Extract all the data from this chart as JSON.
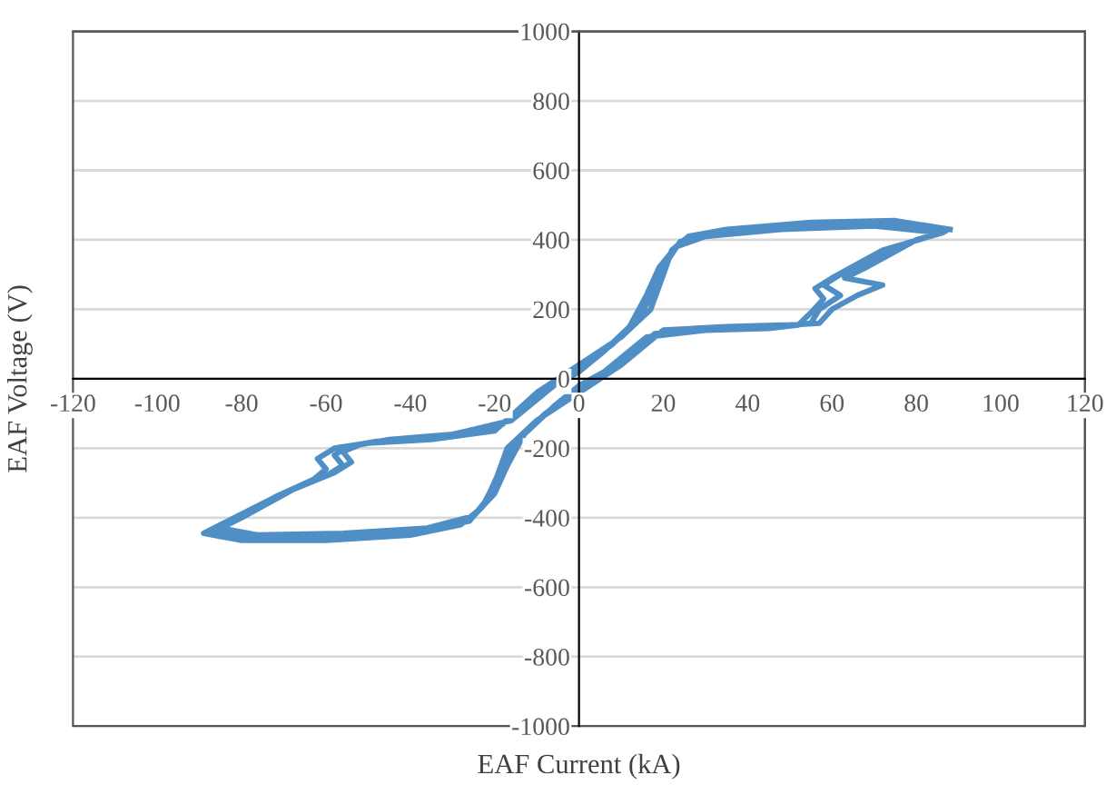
{
  "chart_data": {
    "type": "line",
    "xlabel": "EAF Current (kA)",
    "ylabel": "EAF Voltage (V)",
    "xlim": [
      -120,
      120
    ],
    "xticks": [
      -120,
      -100,
      -80,
      -60,
      -40,
      -20,
      0,
      20,
      40,
      60,
      80,
      100,
      120
    ],
    "ylim": [
      -1000,
      1000
    ],
    "yticks": [
      -1000,
      -800,
      -600,
      -400,
      -200,
      0,
      200,
      400,
      600,
      800,
      1000
    ],
    "grid": "y",
    "legend": false,
    "marker": "none",
    "line_style": "solid",
    "series": [
      {
        "color": "#4f8fc5",
        "x": [
          88,
          75,
          55,
          35,
          26,
          22,
          20,
          17,
          10,
          0,
          -10,
          -20,
          -35,
          -50,
          -58,
          -62,
          -60,
          -63,
          -72,
          -85,
          -89,
          -80,
          -60,
          -40,
          -28,
          -23,
          -20,
          -17,
          -10,
          0,
          10,
          20,
          35,
          50,
          57,
          60,
          66,
          72,
          63,
          68,
          80,
          87,
          72,
          50,
          32,
          24,
          21,
          18,
          14,
          8,
          0,
          -8,
          -18,
          -32,
          -48,
          -55,
          -58,
          -56,
          -60,
          -70,
          -83,
          -87,
          -78,
          -58,
          -38,
          -26,
          -22,
          -19,
          -15,
          -8,
          0,
          8,
          18,
          32,
          48,
          55,
          57,
          62,
          58,
          62,
          75,
          86,
          70,
          48,
          30,
          23,
          19,
          16,
          12,
          6,
          0,
          -6,
          -16,
          -30,
          -45,
          -52,
          -56,
          -54,
          -58,
          -68,
          -80,
          -85,
          -76,
          -56,
          -36,
          -25,
          -20,
          -17,
          -13,
          -6,
          0,
          6,
          16,
          30,
          45,
          52,
          55,
          58,
          56,
          60,
          72,
          86
        ],
        "values": [
          430,
          455,
          450,
          430,
          410,
          370,
          300,
          200,
          120,
          40,
          -40,
          -150,
          -175,
          -185,
          -200,
          -230,
          -260,
          -290,
          -340,
          -420,
          -445,
          -465,
          -465,
          -450,
          -420,
          -370,
          -300,
          -200,
          -120,
          -40,
          40,
          140,
          150,
          155,
          160,
          200,
          240,
          270,
          290,
          320,
          400,
          425,
          445,
          440,
          420,
          395,
          340,
          260,
          170,
          100,
          30,
          -30,
          -130,
          -165,
          -180,
          -195,
          -220,
          -250,
          -280,
          -330,
          -410,
          -435,
          -455,
          -455,
          -440,
          -410,
          -350,
          -270,
          -180,
          -100,
          -30,
          30,
          130,
          145,
          150,
          160,
          200,
          240,
          270,
          300,
          380,
          420,
          440,
          430,
          410,
          380,
          320,
          240,
          150,
          80,
          20,
          -20,
          -120,
          -160,
          -175,
          -190,
          -210,
          -240,
          -270,
          -320,
          -400,
          -430,
          -450,
          -445,
          -430,
          -395,
          -330,
          -250,
          -160,
          -80,
          -20,
          20,
          120,
          140,
          145,
          155,
          190,
          230,
          260,
          290,
          370,
          420
        ]
      }
    ]
  }
}
